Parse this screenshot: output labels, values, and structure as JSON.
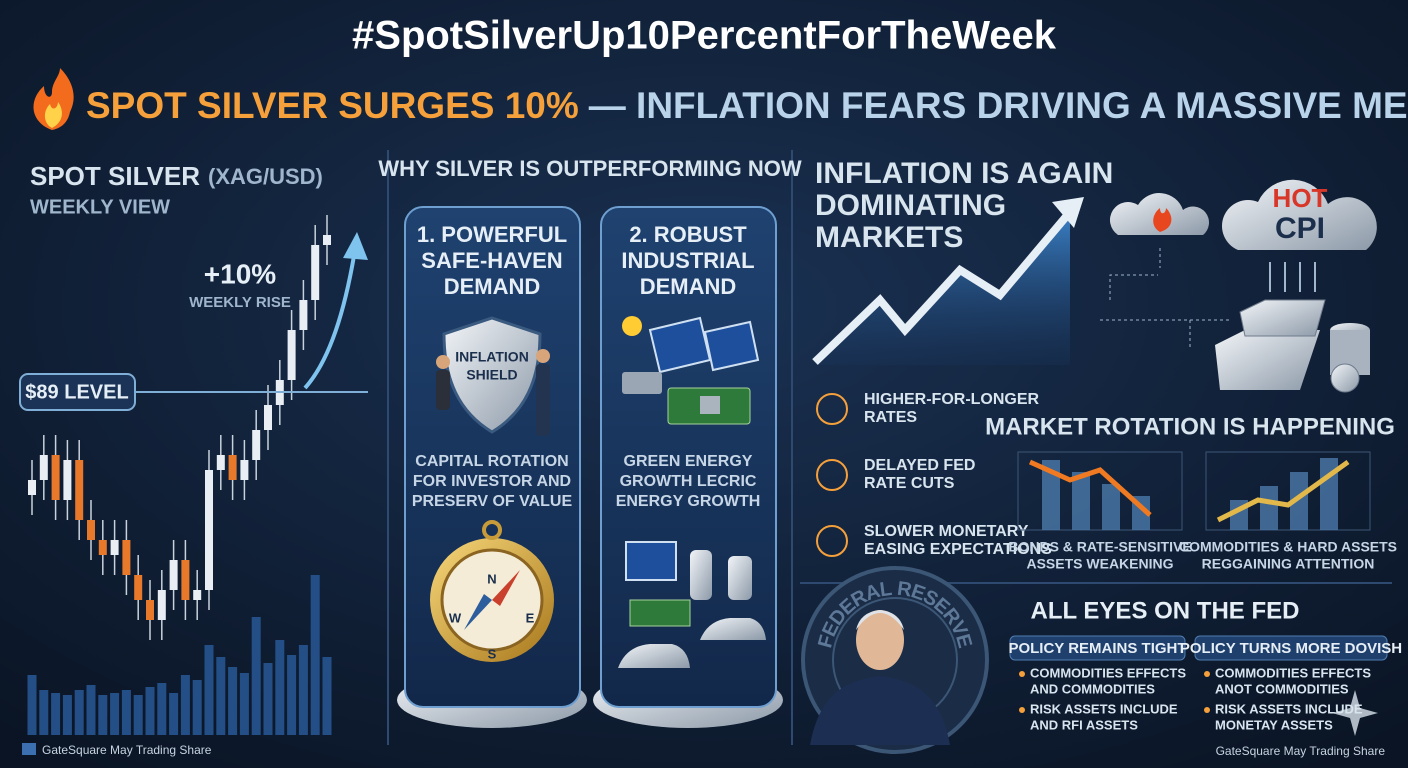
{
  "hashtag": "#SpotSilverUp10PercentForTheWeek",
  "headline": {
    "highlight": "SPOT SILVER SURGES 10%",
    "rest": "— INFLATION FEARS DRIVING A MASSIVE METAL RALLY"
  },
  "chart_panel": {
    "title": "SPOT SILVER",
    "pair": "(XAG/USD)",
    "subtitle": "WEEKLY VIEW",
    "change": "+10%",
    "change_label": "WEEKLY RISE",
    "level": "$89 LEVEL",
    "footer": "GateSquare May Trading Share"
  },
  "drivers": {
    "title": "WHY SILVER IS OUTPERFORMING NOW",
    "cards": [
      {
        "title": [
          "1. POWERFUL",
          "SAFE-HAVEN",
          "DEMAND"
        ],
        "badge": [
          "INFLATION",
          "SHIELD"
        ],
        "caption": [
          "CAPITAL ROTATION",
          "FOR INVESTOR AND",
          "PRESERV OF VALUE"
        ],
        "compass": [
          "N",
          "E",
          "S",
          "W"
        ]
      },
      {
        "title": [
          "2. ROBUST",
          "INDUSTRIAL",
          "DEMAND"
        ],
        "caption": [
          "GREEN ENERGY",
          "GROWTH LECRIC",
          "ENERGY GROWTH"
        ]
      }
    ]
  },
  "inflation": {
    "title": [
      "INFLATION IS AGAIN",
      "DOMINATING",
      "MARKETS"
    ],
    "cloud": [
      "HOT",
      "CPI"
    ],
    "factors": [
      [
        "HIGHER-FOR-LONGER",
        "RATES"
      ],
      [
        "DELAYED FED",
        "RATE CUTS"
      ],
      [
        "SLOWER MONETARY",
        "EASING EXPECTATIONS"
      ]
    ]
  },
  "rotation": {
    "title": "MARKET ROTATION IS HAPPENING",
    "items": [
      [
        "BONDS & RATE-SENSITIVE",
        "ASSETS WEAKENING"
      ],
      [
        "COMMODITIES & HARD ASSETS",
        "REGGAINING ATTENTION"
      ]
    ]
  },
  "fed": {
    "title": "ALL EYES ON THE FED",
    "seal": "FEDERAL RESERVE",
    "scenarios": [
      {
        "title": "POLICY REMAINS TIGHT",
        "bullets": [
          [
            "COMMODITIES EFFECTS",
            "AND COMMODITIES"
          ],
          [
            "RISK ASSETS INCLUDE",
            "AND RFI ASSETS"
          ]
        ]
      },
      {
        "title": "POLICY TURNS MORE DOVISH",
        "bullets": [
          [
            "COMMODITIES EFFECTS",
            "ANOT COMMODITIES"
          ],
          [
            "RISK ASSETS INCLUDE",
            "MONETAY ASSETS"
          ]
        ]
      }
    ],
    "footer": "GateSquare May Trading Share"
  }
}
